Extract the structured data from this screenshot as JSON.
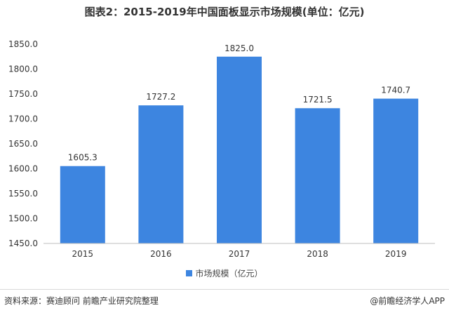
{
  "title": "图表2：2015-2019年中国面板显示市场规模(单位：亿元)",
  "colors": {
    "bar": "#3d85e0",
    "axis": "#bfbfbf",
    "text": "#333333"
  },
  "chart_data": {
    "type": "bar",
    "categories": [
      "2015",
      "2016",
      "2017",
      "2018",
      "2019"
    ],
    "series": [
      {
        "name": "市场规模（亿元）",
        "values": [
          1605.3,
          1727.2,
          1825.0,
          1721.5,
          1740.7
        ]
      }
    ],
    "data_labels": [
      "1605.3",
      "1727.2",
      "1825.0",
      "1721.5",
      "1740.7"
    ],
    "ylim": [
      1450,
      1850
    ],
    "yticks": [
      1450,
      1500,
      1550,
      1600,
      1650,
      1700,
      1750,
      1800,
      1850
    ],
    "ytick_labels": [
      "1450.0",
      "1500.0",
      "1550.0",
      "1600.0",
      "1650.0",
      "1700.0",
      "1750.0",
      "1800.0",
      "1850.0"
    ],
    "grid": false,
    "legend": "bottom"
  },
  "footer": {
    "source": "资料来源：赛迪顾问 前瞻产业研究院整理",
    "brand": "@前瞻经济学人APP"
  }
}
